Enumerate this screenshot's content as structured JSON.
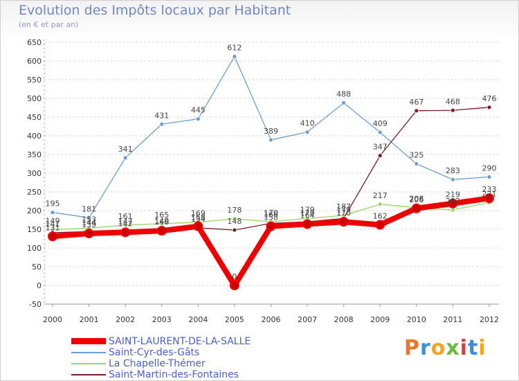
{
  "header": {
    "title": "Evolution des Impôts locaux par Habitant",
    "subtitle": "(en € et par an)"
  },
  "brand": {
    "text": "Proxiti",
    "colors": [
      "#e8782a",
      "#3d8fd6",
      "#f2a623",
      "#6cbb3a",
      "#d83c3c",
      "#3d8fd6",
      "#f2a623"
    ]
  },
  "chart_data": {
    "type": "line",
    "title": "Evolution des Impôts locaux par Habitant",
    "subtitle": "(en € et par an)",
    "xlabel": "",
    "ylabel": "",
    "categories": [
      "2000",
      "2001",
      "2002",
      "2003",
      "2004",
      "2005",
      "2006",
      "2007",
      "2008",
      "2009",
      "2010",
      "2011",
      "2012"
    ],
    "ylim": [
      -50,
      650
    ],
    "yticks": [
      -50,
      0,
      50,
      100,
      150,
      200,
      250,
      300,
      350,
      400,
      450,
      500,
      550,
      600,
      650
    ],
    "grid": "horizontal dashed",
    "legend_position": "bottom-left",
    "series": [
      {
        "name": "Saint-Cyr-des-Gâts",
        "color": "#6b9fd4",
        "values": [
          195,
          181,
          341,
          431,
          445,
          612,
          389,
          410,
          488,
          409,
          325,
          283,
          290
        ]
      },
      {
        "name": "La Chapelle-Thémer",
        "color": "#99d466",
        "values": [
          149,
          153,
          161,
          165,
          169,
          178,
          170,
          179,
          187,
          217,
          208,
          202,
          221
        ]
      },
      {
        "name": "Saint-Martin-des-Fontaines",
        "color": "#7a1d22",
        "values": [
          141,
          144,
          147,
          149,
          154,
          148,
          166,
          170,
          179,
          347,
          467,
          468,
          476
        ]
      },
      {
        "name": "SAINT-LAURENT-DE-LA-SALLE",
        "color": "#ee0000",
        "values": [
          131,
          139,
          142,
          146,
          158,
          0,
          158,
          164,
          170,
          162,
          206,
          219,
          233
        ]
      }
    ],
    "legend_order": [
      "SAINT-LAURENT-DE-LA-SALLE",
      "Saint-Cyr-des-Gâts",
      "La Chapelle-Thémer",
      "Saint-Martin-des-Fontaines"
    ]
  }
}
